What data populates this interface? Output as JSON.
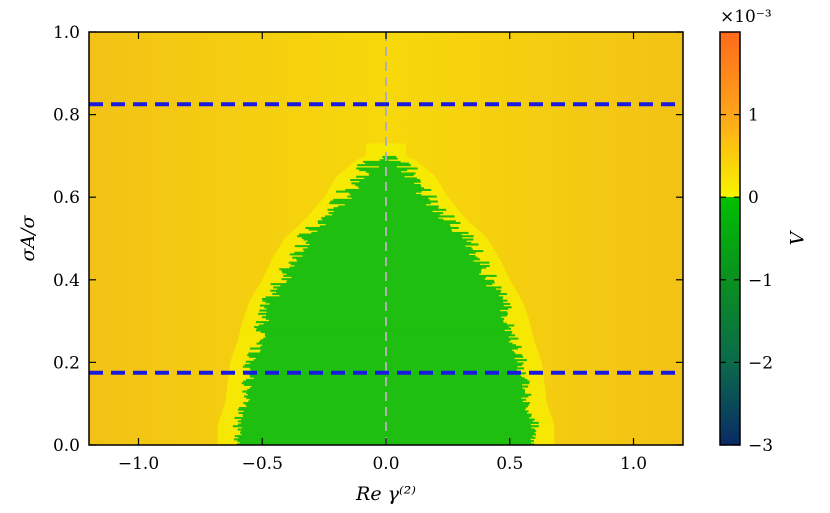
{
  "chart_data": {
    "type": "heatmap",
    "xlabel": "Re γ⁽²⁾",
    "ylabel": "σA/σ",
    "xlim": [
      -1.2,
      1.2
    ],
    "ylim": [
      0.0,
      1.0
    ],
    "x_ticks": [
      {
        "value": -1.0,
        "label": "−1.0"
      },
      {
        "value": -0.5,
        "label": "−0.5"
      },
      {
        "value": 0.0,
        "label": "0.0"
      },
      {
        "value": 0.5,
        "label": "0.5"
      },
      {
        "value": 1.0,
        "label": "1.0"
      }
    ],
    "y_ticks": [
      {
        "value": 0.0,
        "label": "0.0"
      },
      {
        "value": 0.2,
        "label": "0.2"
      },
      {
        "value": 0.4,
        "label": "0.4"
      },
      {
        "value": 0.6,
        "label": "0.6"
      },
      {
        "value": 0.8,
        "label": "0.8"
      },
      {
        "value": 1.0,
        "label": "1.0"
      }
    ],
    "colorbar": {
      "label": "Λ",
      "scale_label": "×10⁻³",
      "range": [
        -3,
        2
      ],
      "ticks": [
        {
          "value": 1,
          "label": "1"
        },
        {
          "value": 0,
          "label": "0"
        },
        {
          "value": -1,
          "label": "−1"
        },
        {
          "value": -2,
          "label": "−2"
        },
        {
          "value": -3,
          "label": "−3"
        }
      ]
    },
    "region_negative": {
      "description_values": "green region where Λ < 0",
      "half_width_by_y": [
        [
          0.0,
          0.6
        ],
        [
          0.05,
          0.6
        ],
        [
          0.1,
          0.57
        ],
        [
          0.15,
          0.56
        ],
        [
          0.2,
          0.55
        ],
        [
          0.25,
          0.52
        ],
        [
          0.3,
          0.5
        ],
        [
          0.35,
          0.47
        ],
        [
          0.4,
          0.42
        ],
        [
          0.45,
          0.38
        ],
        [
          0.5,
          0.33
        ],
        [
          0.55,
          0.24
        ],
        [
          0.6,
          0.17
        ],
        [
          0.65,
          0.12
        ],
        [
          0.7,
          0.02
        ]
      ]
    },
    "horizontal_lines": [
      {
        "y": 0.825,
        "color": "#1a1adf",
        "style": "dashed"
      },
      {
        "y": 0.175,
        "color": "#1a1adf",
        "style": "dashed"
      }
    ],
    "vertical_line": {
      "x": 0.0,
      "color": "#b0b0b0",
      "style": "dashed"
    },
    "colors": {
      "positive": "#f6cc10",
      "zero": "#f7f400",
      "negative": "#1fbf10",
      "deep_negative": "#0b2a6a"
    }
  }
}
